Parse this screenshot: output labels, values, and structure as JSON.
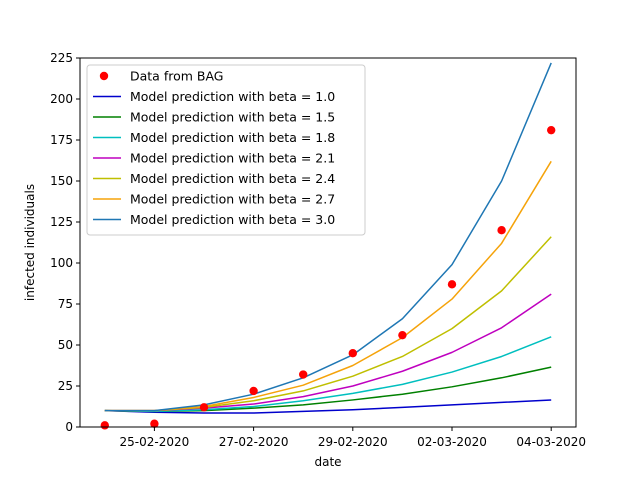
{
  "chart_data": {
    "type": "line",
    "xlabel": "date",
    "ylabel": "infected individuals",
    "x_dates": [
      "24-02-2020",
      "25-02-2020",
      "26-02-2020",
      "27-02-2020",
      "28-02-2020",
      "29-02-2020",
      "01-03-2020",
      "02-03-2020",
      "03-03-2020",
      "04-03-2020"
    ],
    "xticks": [
      "25-02-2020",
      "27-02-2020",
      "29-02-2020",
      "02-03-2020",
      "04-03-2020"
    ],
    "xlim": [
      "23-02-2020 12:00",
      "04-03-2020 12:00"
    ],
    "ylim": [
      0,
      225
    ],
    "yticks": [
      0,
      25,
      50,
      75,
      100,
      125,
      150,
      175,
      200,
      225
    ],
    "ytick_labels": [
      "0",
      "25",
      "50",
      "75",
      "100",
      "125",
      "150",
      "175",
      "200",
      "225"
    ],
    "legend_position": "upper-left",
    "observed": {
      "name": "Data from BAG",
      "color": "#ff0000",
      "values": [
        1,
        2,
        12,
        22,
        32,
        45,
        56,
        87,
        120,
        181
      ]
    },
    "series": [
      {
        "name": "Model prediction with beta = 1.0",
        "color": "#0000cc",
        "values": [
          10,
          9,
          8.5,
          8.5,
          9.5,
          10.5,
          12,
          13.5,
          15,
          16.5
        ]
      },
      {
        "name": "Model prediction with beta = 1.5",
        "color": "#008000",
        "values": [
          10,
          9.5,
          10,
          11.5,
          13.5,
          16.5,
          20,
          24.5,
          30,
          36.5
        ]
      },
      {
        "name": "Model prediction with beta = 1.8",
        "color": "#00bfbf",
        "values": [
          10,
          9.5,
          10.5,
          12.5,
          16,
          20.5,
          26,
          33.5,
          43,
          55
        ]
      },
      {
        "name": "Model prediction with beta = 2.1",
        "color": "#bf00bf",
        "values": [
          10,
          10,
          11.5,
          14,
          18.5,
          25,
          34,
          45.5,
          60.5,
          81
        ]
      },
      {
        "name": "Model prediction with beta = 2.4",
        "color": "#bfbf00",
        "values": [
          10,
          10,
          12,
          16,
          22,
          31,
          43,
          60,
          83,
          116
        ]
      },
      {
        "name": "Model prediction with beta = 2.7",
        "color": "#f5a30a",
        "values": [
          10,
          10,
          12.5,
          18,
          25.5,
          37.5,
          54.5,
          78,
          112,
          162
        ]
      },
      {
        "name": "Model prediction with beta = 3.0",
        "color": "#1f77b4",
        "values": [
          10,
          10,
          13.5,
          20,
          30,
          44,
          66,
          99,
          150,
          222
        ]
      }
    ]
  }
}
